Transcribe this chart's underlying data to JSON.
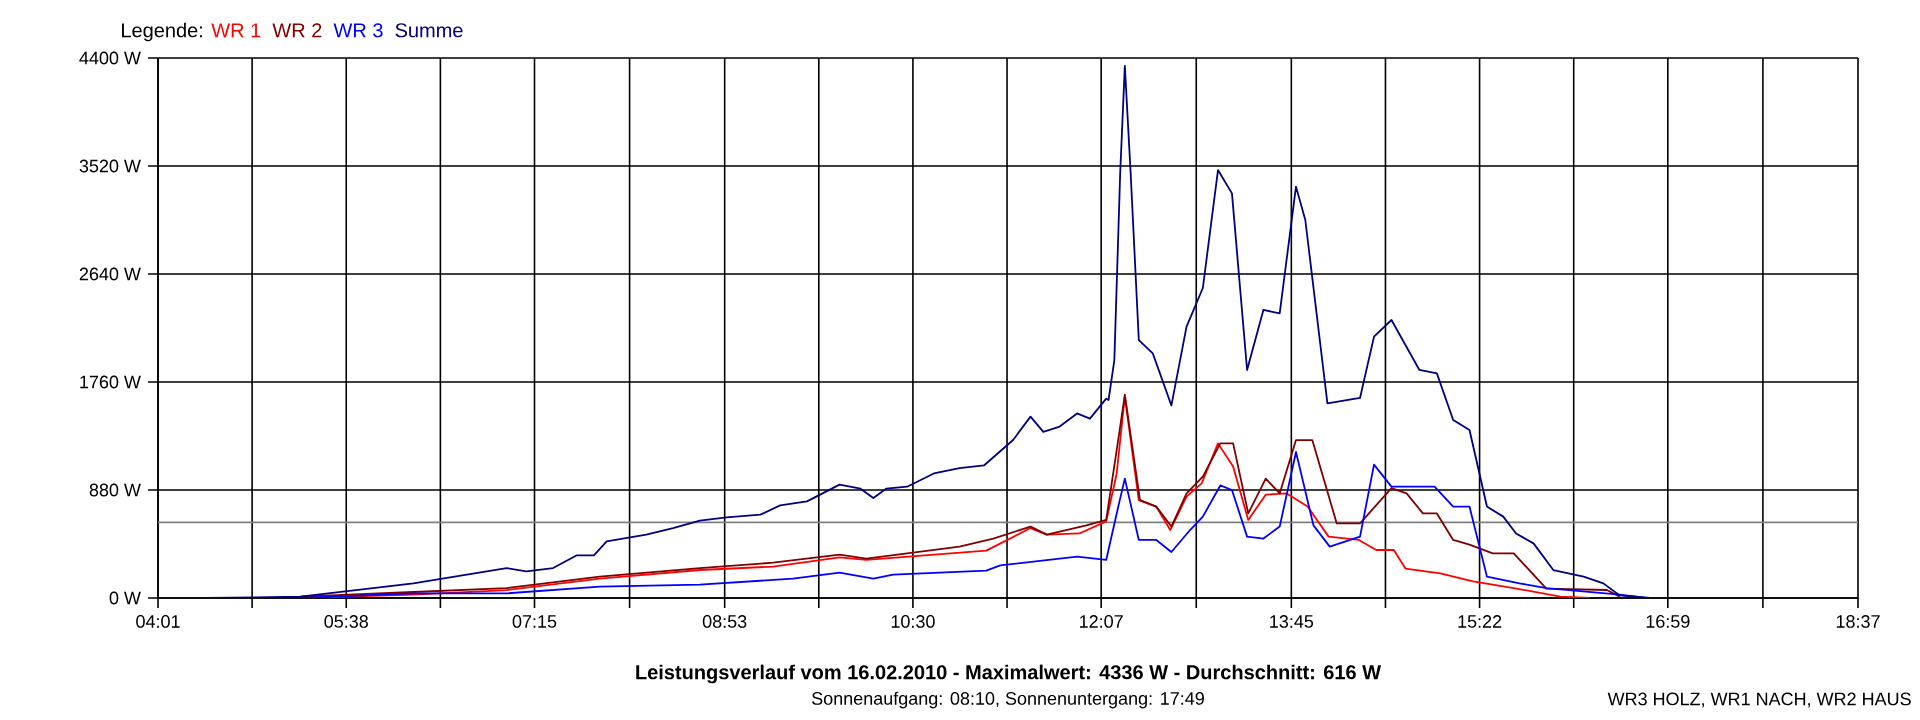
{
  "chart_data": {
    "type": "line",
    "title": "Leistungsverlauf vom 16.02.2010 - Maximalwert: 4336 W - Durchschnitt: 616 W",
    "subtitle": "Sonnenaufgang: 08:10, Sonnenuntergang: 17:49",
    "annotations": [
      "WR3 HOLZ, WR1 NACH, WR2 HAUS"
    ],
    "legend_title": "Legende:",
    "legend": "top left",
    "grid": true,
    "line_style": "solid",
    "xlim": [
      4.0167,
      18.6167
    ],
    "ylim": [
      0,
      4400
    ],
    "xticks": [
      {
        "value": 4.0167,
        "label": "04:01"
      },
      {
        "value": 4.825,
        "label": null
      },
      {
        "value": 5.6333,
        "label": "05:38"
      },
      {
        "value": 6.4417,
        "label": null
      },
      {
        "value": 7.25,
        "label": "07:15"
      },
      {
        "value": 8.0667,
        "label": null
      },
      {
        "value": 8.8833,
        "label": "08:53"
      },
      {
        "value": 9.6917,
        "label": null
      },
      {
        "value": 10.5,
        "label": "10:30"
      },
      {
        "value": 11.3083,
        "label": null
      },
      {
        "value": 12.1167,
        "label": "12:07"
      },
      {
        "value": 12.9333,
        "label": null
      },
      {
        "value": 13.75,
        "label": "13:45"
      },
      {
        "value": 14.5583,
        "label": null
      },
      {
        "value": 15.3667,
        "label": "15:22"
      },
      {
        "value": 16.175,
        "label": null
      },
      {
        "value": 16.9833,
        "label": "16:59"
      },
      {
        "value": 17.8,
        "label": null
      },
      {
        "value": 18.6167,
        "label": "18:37"
      }
    ],
    "yticks": [
      {
        "value": 0,
        "label": "0 W"
      },
      {
        "value": 880,
        "label": "880 W"
      },
      {
        "value": 1760,
        "label": "1760 W"
      },
      {
        "value": 2640,
        "label": "2640 W"
      },
      {
        "value": 3520,
        "label": "3520 W"
      },
      {
        "value": 4400,
        "label": "4400 W"
      }
    ],
    "ref_lines": [
      {
        "axis": "y",
        "value": 616,
        "color": "#808080"
      }
    ],
    "series": [
      {
        "name": "WR 1",
        "color": "#ff0000",
        "x": [
          5.24,
          6.21,
          7.01,
          7.81,
          8.67,
          9.3,
          9.87,
          10.1,
          11.13,
          11.51,
          11.65,
          11.93,
          12.16,
          12.25,
          12.32,
          12.44,
          12.59,
          12.71,
          12.85,
          12.98,
          13.12,
          13.25,
          13.38,
          13.53,
          13.71,
          13.89,
          14.07,
          14.33,
          14.48,
          14.63,
          14.73,
          15.03,
          15.31,
          15.66,
          16.06,
          16.31
        ],
        "values": [
          0,
          28,
          65,
          158,
          228,
          256,
          331,
          310,
          386,
          570,
          516,
          526,
          624,
          1015,
          1641,
          798,
          745,
          554,
          826,
          934,
          1260,
          1071,
          636,
          842,
          852,
          745,
          500,
          473,
          391,
          391,
          240,
          200,
          135,
          81,
          11,
          0
        ]
      },
      {
        "name": "WR 2",
        "color": "#800000",
        "x": [
          5.24,
          6.21,
          7.01,
          7.81,
          8.67,
          9.3,
          9.87,
          10.1,
          10.9,
          11.19,
          11.51,
          11.65,
          11.99,
          12.16,
          12.27,
          12.32,
          12.45,
          12.59,
          12.72,
          12.85,
          12.99,
          13.14,
          13.25,
          13.38,
          13.53,
          13.65,
          13.79,
          13.93,
          14.14,
          14.34,
          14.61,
          14.74,
          14.88,
          15.0,
          15.14,
          15.28,
          15.48,
          15.66,
          15.94,
          16.46,
          16.57
        ],
        "values": [
          11,
          49,
          81,
          174,
          244,
          288,
          353,
          321,
          419,
          484,
          582,
          516,
          592,
          636,
          1331,
          1657,
          798,
          745,
          582,
          852,
          989,
          1260,
          1260,
          689,
          973,
          852,
          1287,
          1287,
          608,
          608,
          896,
          852,
          689,
          689,
          473,
          435,
          364,
          364,
          77,
          65,
          11
        ]
      },
      {
        "name": "WR 3",
        "color": "#0000ff",
        "x": [
          5.24,
          6.21,
          7.01,
          7.81,
          8.67,
          9.47,
          9.87,
          10.16,
          10.33,
          11.13,
          11.25,
          11.91,
          12.16,
          12.27,
          12.32,
          12.44,
          12.59,
          12.72,
          12.88,
          12.99,
          13.14,
          13.24,
          13.37,
          13.51,
          13.65,
          13.79,
          13.94,
          14.08,
          14.34,
          14.46,
          14.61,
          14.98,
          15.14,
          15.28,
          15.43,
          15.71,
          15.94,
          16.57,
          16.8
        ],
        "values": [
          0,
          38,
          38,
          93,
          109,
          158,
          207,
          158,
          191,
          223,
          266,
          337,
          310,
          771,
          973,
          473,
          473,
          375,
          554,
          663,
          917,
          880,
          500,
          484,
          582,
          1190,
          592,
          419,
          500,
          1087,
          908,
          908,
          745,
          745,
          174,
          119,
          81,
          28,
          0
        ]
      },
      {
        "name": "Summe",
        "color": "#000080",
        "x": [
          4.43,
          5.24,
          6.21,
          7.01,
          7.18,
          7.41,
          7.61,
          7.76,
          7.87,
          8.21,
          8.44,
          8.67,
          8.9,
          9.19,
          9.36,
          9.59,
          9.87,
          10.05,
          10.16,
          10.27,
          10.45,
          10.68,
          10.9,
          11.11,
          11.36,
          11.51,
          11.62,
          11.76,
          11.91,
          12.02,
          12.16,
          12.18,
          12.23,
          12.28,
          12.32,
          12.37,
          12.44,
          12.56,
          12.72,
          12.85,
          12.99,
          13.12,
          13.24,
          13.37,
          13.51,
          13.65,
          13.79,
          13.87,
          14.06,
          14.34,
          14.46,
          14.61,
          14.85,
          15.0,
          15.14,
          15.28,
          15.43,
          15.57,
          15.68,
          15.83,
          16.0,
          16.26,
          16.43,
          16.57,
          16.83,
          17.22
        ],
        "values": [
          0,
          11,
          119,
          244,
          217,
          244,
          347,
          347,
          461,
          516,
          570,
          630,
          657,
          679,
          755,
          787,
          924,
          891,
          815,
          891,
          907,
          1015,
          1059,
          1080,
          1287,
          1478,
          1353,
          1397,
          1504,
          1462,
          1625,
          1613,
          1939,
          3460,
          4336,
          3460,
          2102,
          1993,
          1569,
          2211,
          2526,
          3487,
          3297,
          1858,
          2347,
          2319,
          3352,
          3080,
          1586,
          1630,
          2130,
          2265,
          1858,
          1830,
          1450,
          1369,
          745,
          663,
          526,
          445,
          228,
          174,
          119,
          21,
          0,
          0
        ]
      }
    ]
  }
}
